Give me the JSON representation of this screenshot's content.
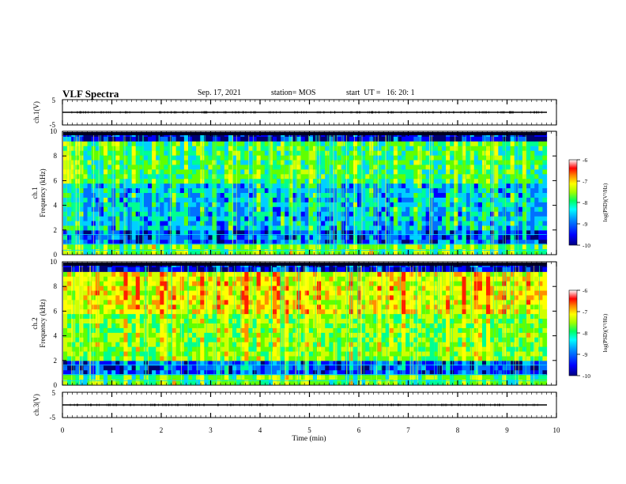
{
  "header": {
    "title": "VLF Spectra",
    "date": "Sep. 17, 2021",
    "station": "station= MOS",
    "start": "start  UT =   16: 20: 1"
  },
  "chart_data": [
    {
      "type": "line",
      "panel": "ch1-waveform",
      "ylabel": "ch.1(V)",
      "ylim": [
        -5,
        5
      ],
      "ytick_labels": [
        "5",
        "-5"
      ],
      "x_range": [
        0,
        10
      ],
      "series": [
        {
          "values_description": "flat",
          "x": [
            0,
            9.8
          ],
          "y": [
            0,
            0
          ]
        }
      ]
    },
    {
      "type": "heatmap",
      "panel": "ch1-spectrogram",
      "ylabel_line1": "ch.1",
      "ylabel_line2": "Frequency (kHz)",
      "ylim": [
        0,
        10
      ],
      "ytick_labels": [
        "0",
        "2",
        "4",
        "6",
        "8",
        "10"
      ],
      "x_range": [
        0,
        9.8
      ],
      "colorbar": {
        "label": "log(PSD)(V²/Hz)",
        "range": [
          -10,
          -6
        ],
        "tick_labels": [
          "-6",
          "-7",
          "-8",
          "-9",
          "-10"
        ]
      },
      "colormap": [
        "#00008c",
        "#0000ff",
        "#0080ff",
        "#00e0ff",
        "#00ff80",
        "#80ff00",
        "#ffff00",
        "#ff8000",
        "#ff0000",
        "#ffffff"
      ]
    },
    {
      "type": "heatmap",
      "panel": "ch2-spectrogram",
      "ylabel_line1": "ch.2",
      "ylabel_line2": "Frequency (kHz)",
      "ylim": [
        0,
        10
      ],
      "ytick_labels": [
        "0",
        "2",
        "4",
        "6",
        "8",
        "10"
      ],
      "x_range": [
        0,
        9.8
      ],
      "colorbar": {
        "label": "log(PSD)(V²/Hz)",
        "range": [
          -10,
          -6
        ],
        "tick_labels": [
          "-6",
          "-7",
          "-8",
          "-9",
          "-10"
        ]
      }
    },
    {
      "type": "line",
      "panel": "ch3-waveform",
      "ylabel": "ch.3(V)",
      "ylim": [
        -5,
        5
      ],
      "ytick_labels": [
        "5",
        "-5"
      ],
      "x_range": [
        0,
        10
      ],
      "xlabel": "Time  (min)",
      "xtick_labels": [
        "0",
        "1",
        "2",
        "3",
        "4",
        "5",
        "6",
        "7",
        "8",
        "9",
        "10"
      ],
      "series": [
        {
          "x": [
            0,
            9.8
          ],
          "y": [
            0,
            0
          ]
        }
      ]
    }
  ]
}
